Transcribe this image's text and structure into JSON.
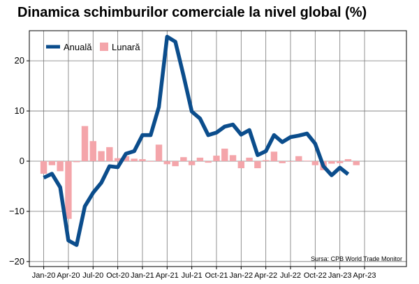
{
  "chart_data": {
    "type": "bar+line",
    "title": "Dinamica schimburilor comerciale la nivel global (%)",
    "source": "Sursa: CPB World Trade Monitor",
    "xlabel": "",
    "ylabel": "",
    "ylim": [
      -21,
      26
    ],
    "yticks": [
      -20,
      -10,
      0,
      10,
      20
    ],
    "xtick_labels": [
      "Jan-20",
      "Apr-20",
      "Jul-20",
      "Oct-20",
      "Jan-21",
      "Apr-21",
      "Jul-21",
      "Oct-21",
      "Jan-22",
      "Apr-22",
      "Jul-22",
      "Oct-22",
      "Jan-23",
      "Apr-23"
    ],
    "grid": true,
    "legend_position": "top-left",
    "x": [
      "Jan-20",
      "Feb-20",
      "Mar-20",
      "Apr-20",
      "May-20",
      "Jun-20",
      "Jul-20",
      "Aug-20",
      "Sep-20",
      "Oct-20",
      "Nov-20",
      "Dec-20",
      "Jan-21",
      "Feb-21",
      "Mar-21",
      "Apr-21",
      "May-21",
      "Jun-21",
      "Jul-21",
      "Aug-21",
      "Sep-21",
      "Oct-21",
      "Nov-21",
      "Dec-21",
      "Jan-22",
      "Feb-22",
      "Mar-22",
      "Apr-22",
      "May-22",
      "Jun-22",
      "Jul-22",
      "Aug-22",
      "Sep-22",
      "Oct-22",
      "Nov-22",
      "Dec-22",
      "Jan-23",
      "Feb-23",
      "Mar-23"
    ],
    "series": [
      {
        "name": "Lunară",
        "type": "bar",
        "color": "#f4a5aa",
        "values": [
          -2.5,
          -0.8,
          -2.0,
          -11.5,
          -0.2,
          7.0,
          4.0,
          2.0,
          2.8,
          0.6,
          1.0,
          0.5,
          0.4,
          -0.1,
          3.3,
          -0.6,
          -1.0,
          0.8,
          -0.8,
          0.7,
          -0.3,
          1.1,
          2.5,
          1.2,
          -1.4,
          0.7,
          -1.4,
          0.2,
          1.9,
          -0.4,
          0.0,
          1.0,
          0.1,
          -0.8,
          -1.8,
          -0.5,
          -0.4,
          0.4,
          -0.8
        ]
      },
      {
        "name": "Anuală",
        "type": "line",
        "color": "#0b4d8c",
        "values": [
          -3.3,
          -2.5,
          -5.2,
          -15.8,
          -16.7,
          -9.0,
          -6.3,
          -4.3,
          -1.0,
          -1.2,
          1.5,
          2.0,
          5.2,
          5.2,
          10.8,
          24.8,
          23.8,
          17.0,
          9.9,
          8.5,
          5.2,
          5.7,
          6.9,
          7.3,
          5.3,
          6.2,
          1.2,
          2.0,
          5.2,
          3.8,
          4.8,
          5.1,
          5.5,
          3.5,
          -1.0,
          -2.8,
          -1.3,
          -2.6,
          null
        ]
      }
    ]
  }
}
